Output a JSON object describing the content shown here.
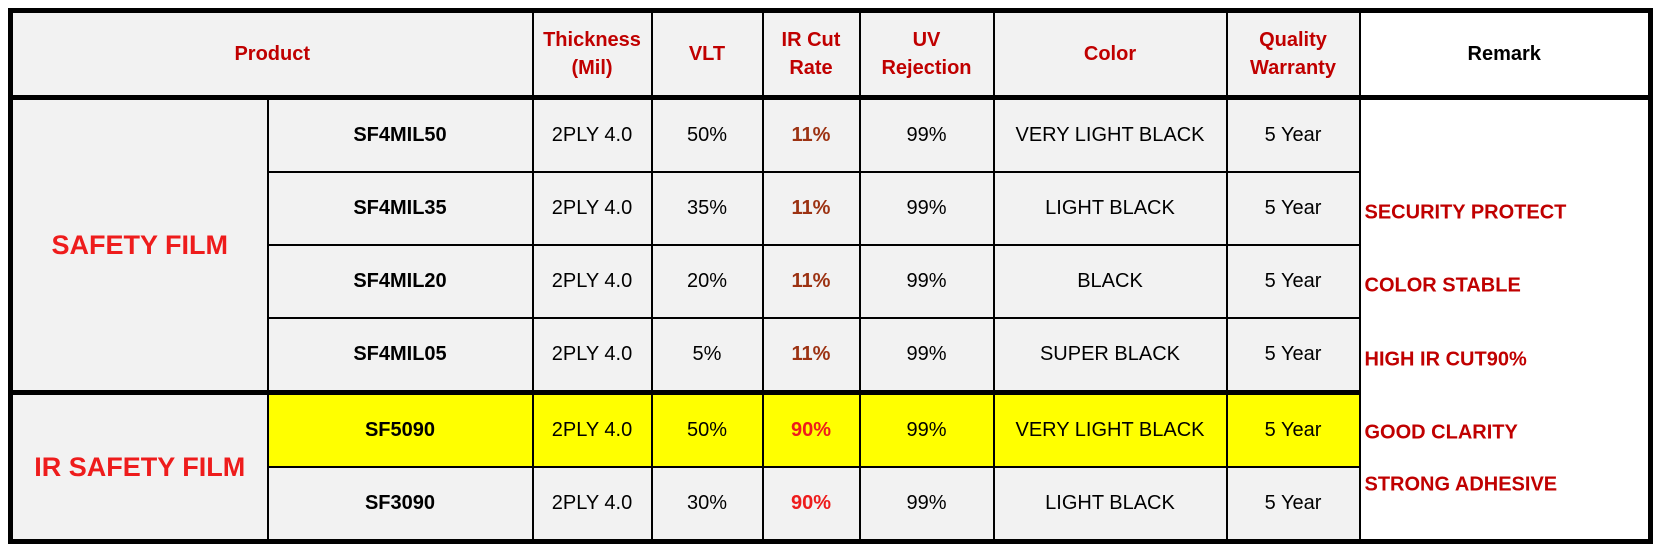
{
  "table": {
    "header": [
      "Product",
      "Thickness\n(Mil)",
      "VLT",
      "IR Cut\nRate",
      "UV\nRejection",
      "Color",
      "Quality\nWarranty",
      "Remark"
    ],
    "groups": [
      {
        "name": "SAFETY FILM",
        "rows": [
          [
            "SF4MIL50",
            "2PLY 4.0",
            "50%",
            "11%",
            "99%",
            "VERY LIGHT BLACK",
            "5 Year"
          ],
          [
            "SF4MIL35",
            "2PLY 4.0",
            "35%",
            "11%",
            "99%",
            "LIGHT BLACK",
            "5 Year"
          ],
          [
            "SF4MIL20",
            "2PLY 4.0",
            "20%",
            "11%",
            "99%",
            "BLACK",
            "5 Year"
          ],
          [
            "SF4MIL05",
            "2PLY 4.0",
            "5%",
            "11%",
            "99%",
            "SUPER BLACK",
            "5 Year"
          ]
        ]
      },
      {
        "name": "IR SAFETY FILM",
        "rows": [
          [
            "SF5090",
            "2PLY 4.0",
            "50%",
            "90%",
            "99%",
            "VERY LIGHT BLACK",
            "5 Year"
          ],
          [
            "SF3090",
            "2PLY 4.0",
            "30%",
            "90%",
            "99%",
            "LIGHT BLACK",
            "5 Year"
          ]
        ]
      }
    ],
    "remark": [
      "SECURITY PROTECT",
      "COLOR STABLE",
      "HIGH IR CUT90%",
      "GOOD CLARITY",
      "STRONG ADHESIVE"
    ],
    "highlight": {
      "group": 1,
      "row": 0,
      "color": "#ffff00"
    }
  }
}
